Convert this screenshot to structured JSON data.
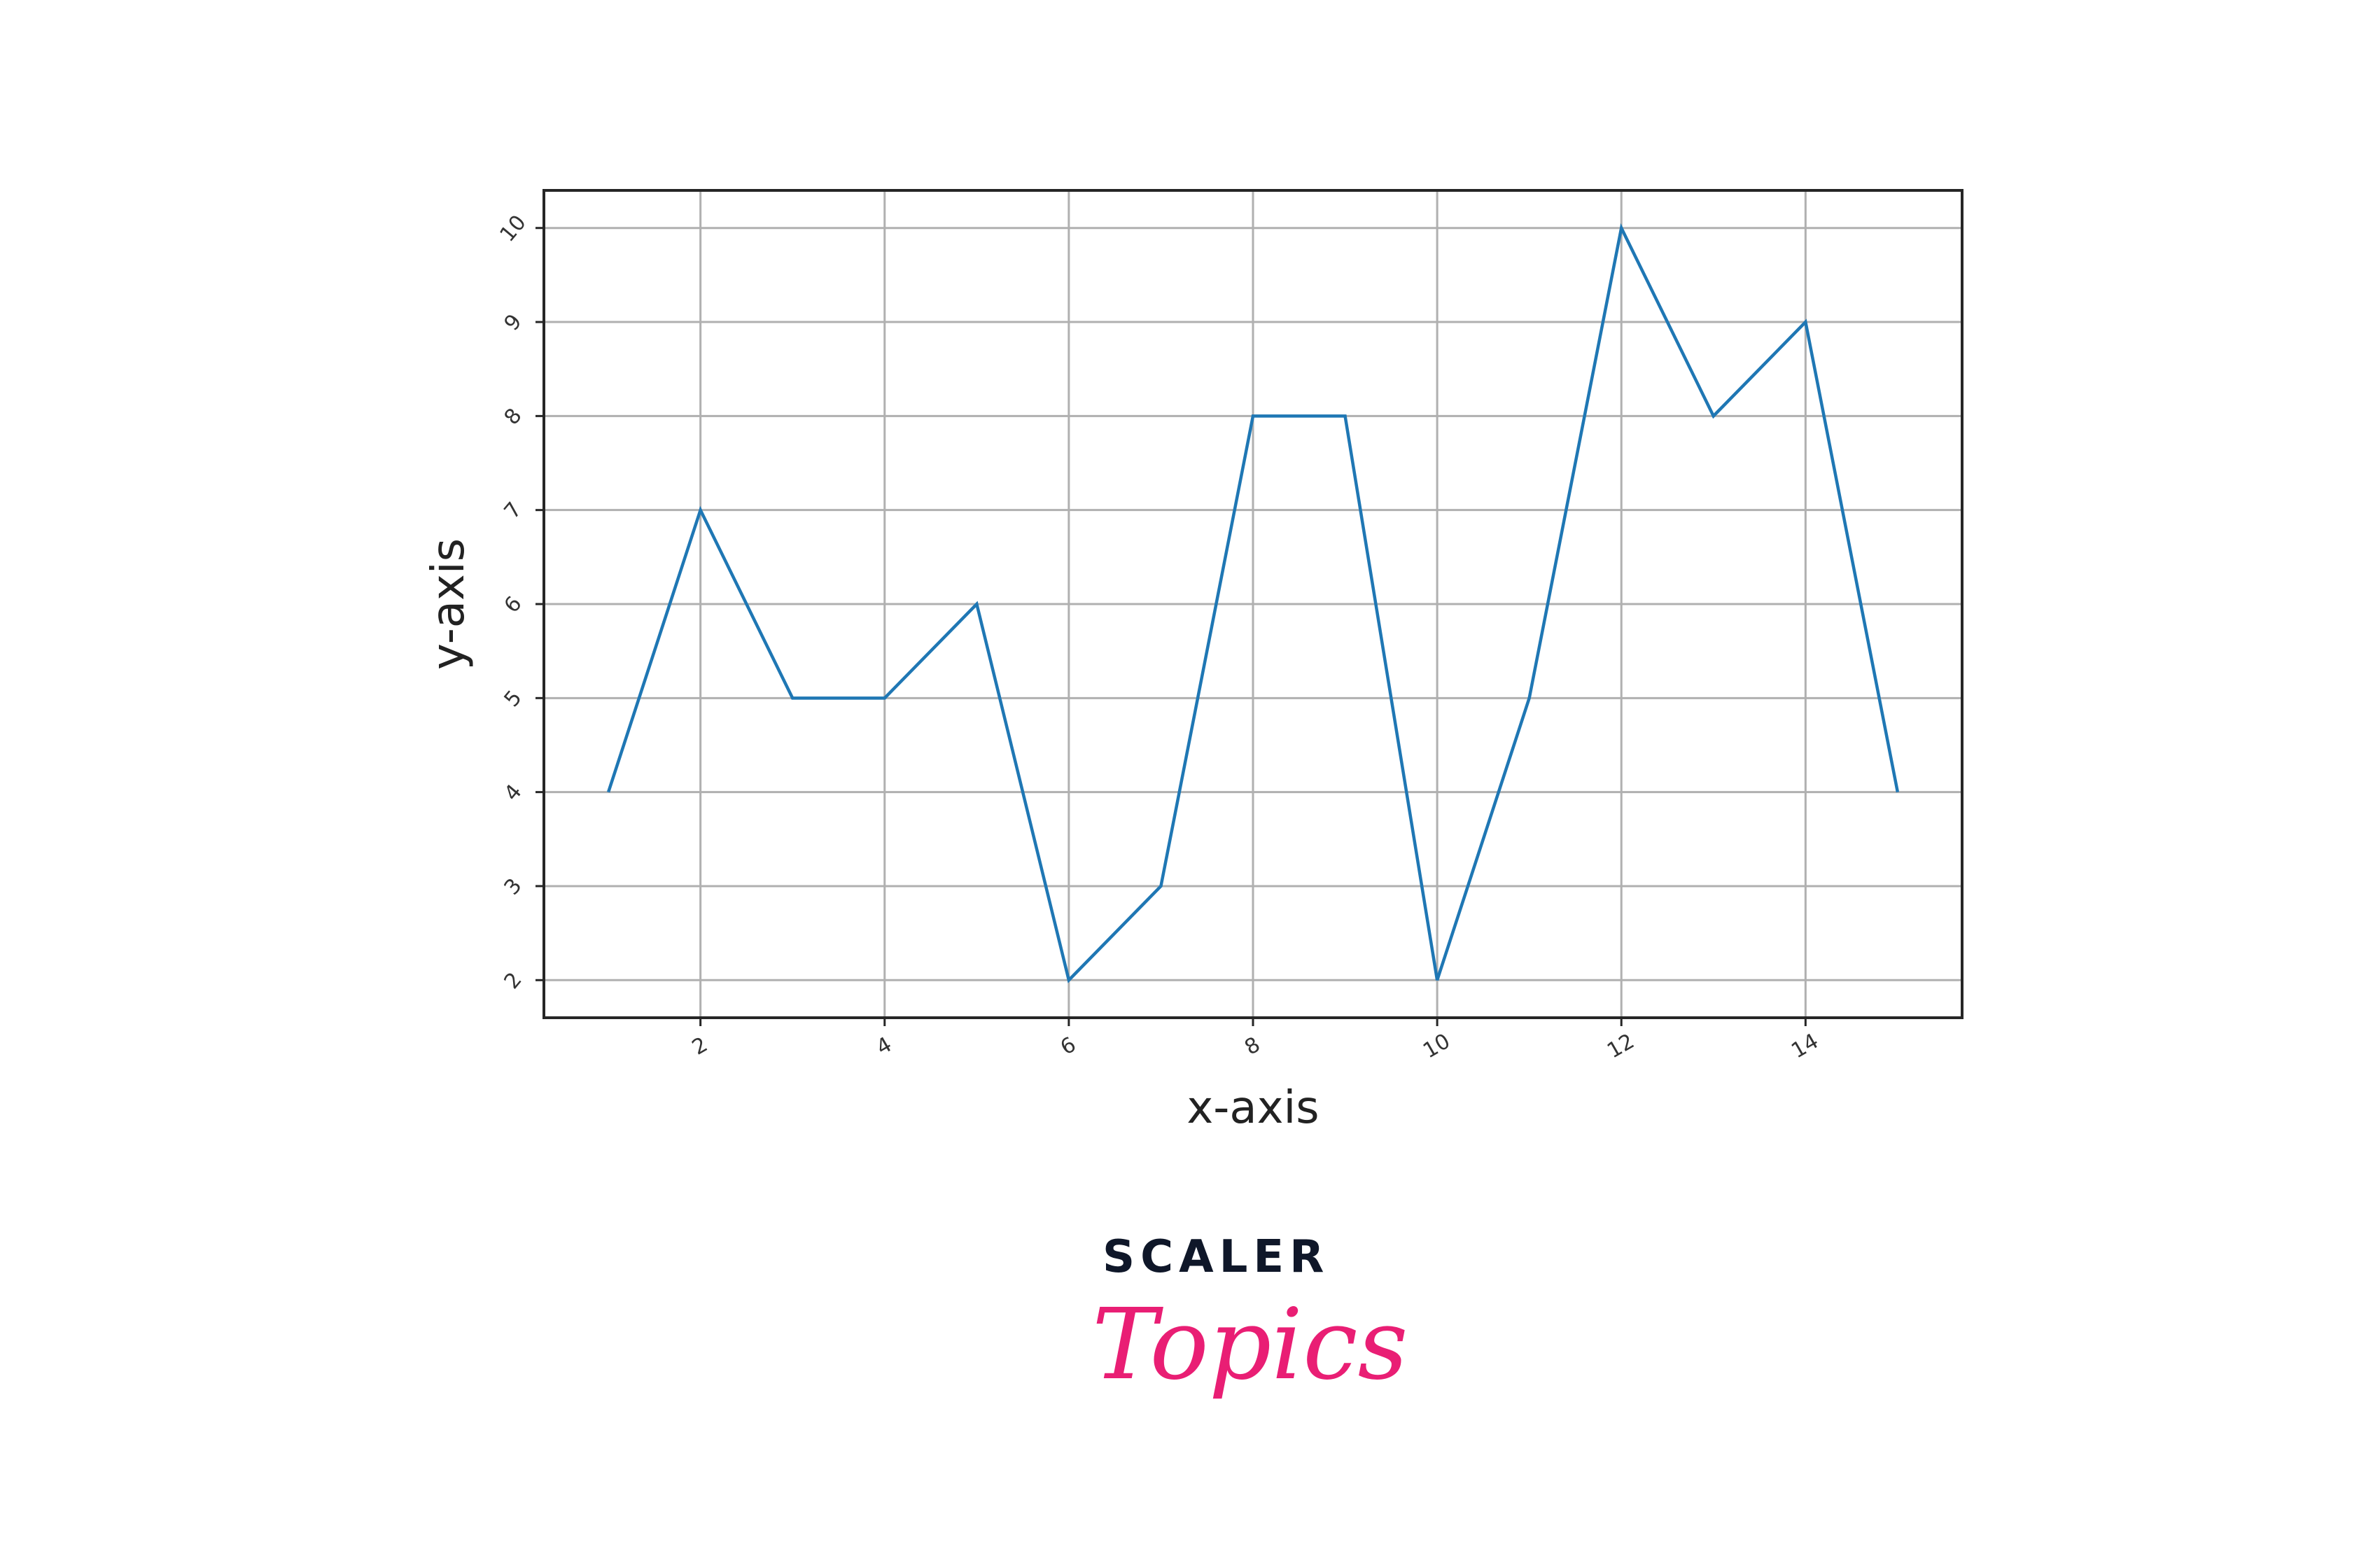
{
  "chart_data": {
    "type": "line",
    "title": "",
    "xlabel": "x-axis",
    "ylabel": "y-axis",
    "x": [
      1,
      2,
      3,
      4,
      5,
      6,
      7,
      8,
      9,
      10,
      11,
      12,
      13,
      14,
      15
    ],
    "series": [
      {
        "values": [
          4,
          7,
          5,
          5,
          6,
          2,
          3,
          8,
          8,
          2,
          5,
          10,
          8,
          9,
          4
        ],
        "color": "#1f77b4"
      }
    ],
    "xlim": [
      0.3,
      15.7
    ],
    "ylim": [
      1.6,
      10.4
    ],
    "xticks": [
      2,
      4,
      6,
      8,
      10,
      12,
      14
    ],
    "yticks": [
      2,
      3,
      4,
      5,
      6,
      7,
      8,
      9,
      10
    ],
    "xtick_labels": [
      "2",
      "4",
      "6",
      "8",
      "10",
      "12",
      "14"
    ],
    "ytick_labels": [
      "2",
      "3",
      "4",
      "5",
      "6",
      "7",
      "8",
      "9",
      "10"
    ],
    "grid": true,
    "grid_color": "#b0b0b0",
    "tick_label_rotation_deg": 30
  },
  "logo": {
    "line1": "SCALER",
    "line2": "Topics",
    "colors": {
      "scaler": "#0f1729",
      "topics": "#e91e74"
    }
  }
}
